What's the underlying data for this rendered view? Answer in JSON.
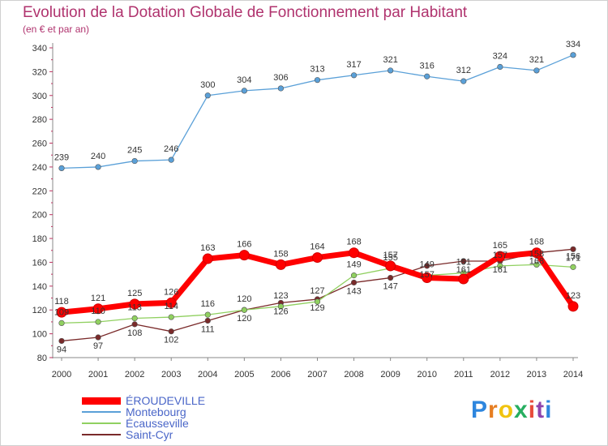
{
  "title": "Evolution de la Dotation Globale de Fonctionnement par Habitant",
  "subtitle": "(en € et par an)",
  "logo": {
    "text": "Proxiti",
    "letters": [
      "P",
      "r",
      "o",
      "x",
      "i",
      "t",
      "i"
    ],
    "colors": [
      "#2e86de",
      "#e67e22",
      "#f1c40f",
      "#27ae60",
      "#e74c3c",
      "#8e44ad",
      "#2e86de"
    ]
  },
  "chart_data": {
    "type": "line",
    "x": [
      2000,
      2001,
      2002,
      2003,
      2004,
      2005,
      2006,
      2007,
      2008,
      2009,
      2010,
      2011,
      2012,
      2013,
      2014
    ],
    "ylim": [
      80,
      340
    ],
    "yticks": [
      80,
      100,
      120,
      140,
      160,
      180,
      200,
      220,
      240,
      260,
      280,
      300,
      320,
      340
    ],
    "grid": false,
    "legend_position": "bottom-left",
    "series": [
      {
        "name": "ÉROUDEVILLE",
        "color": "#ff0000",
        "values": [
          118,
          121,
          125,
          126,
          163,
          166,
          158,
          164,
          168,
          157,
          147,
          146,
          165,
          168,
          123
        ],
        "labels": [
          "118",
          "121",
          "125",
          "126",
          "163",
          "166",
          "158",
          "164",
          "168",
          "157",
          "",
          "",
          "165",
          "168",
          "123"
        ]
      },
      {
        "name": "Montebourg",
        "color": "#5aa0d8",
        "values": [
          239,
          240,
          245,
          246,
          300,
          304,
          306,
          313,
          317,
          321,
          316,
          312,
          324,
          321,
          334
        ],
        "labels": [
          "239",
          "240",
          "245",
          "246",
          "300",
          "304",
          "306",
          "313",
          "317",
          "321",
          "316",
          "312",
          "324",
          "321",
          "334"
        ]
      },
      {
        "name": "Écausseville",
        "color": "#90d060",
        "values": [
          109,
          110,
          113,
          114,
          116,
          120,
          123,
          127,
          149,
          155,
          149,
          151,
          157,
          158,
          156
        ],
        "labels": [
          "109",
          "110",
          "113",
          "114",
          "116",
          "120",
          "123",
          "127",
          "149",
          "155",
          "149",
          "151",
          "157",
          "158",
          "156"
        ]
      },
      {
        "name": "Saint-Cyr",
        "color": "#7a2a2a",
        "values": [
          94,
          97,
          108,
          102,
          111,
          120,
          126,
          129,
          143,
          147,
          157,
          161,
          161,
          168,
          171
        ],
        "labels": [
          "94",
          "97",
          "108",
          "102",
          "111",
          "120",
          "126",
          "129",
          "143",
          "147",
          "157",
          "161",
          "161",
          "168",
          "171"
        ]
      }
    ]
  }
}
